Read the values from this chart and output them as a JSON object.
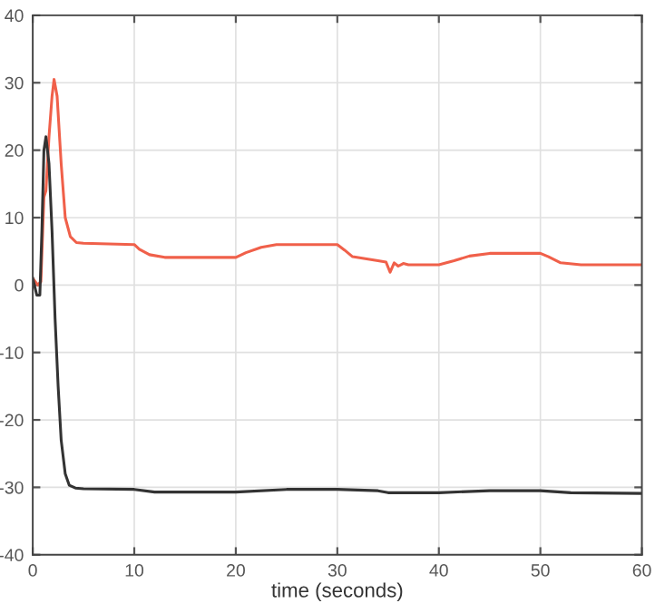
{
  "chart_data": {
    "type": "line",
    "xlabel": "time (seconds)",
    "xlim": [
      0,
      60
    ],
    "ylim": [
      -40,
      40
    ],
    "xticks": [
      0,
      10,
      20,
      30,
      40,
      50,
      60
    ],
    "yticks": [
      -40,
      -30,
      -20,
      -10,
      0,
      10,
      20,
      30,
      40
    ],
    "grid": true,
    "series": [
      {
        "color": "#f0604a",
        "x": [
          0,
          0.5,
          0.8,
          1.1,
          1.3,
          1.6,
          1.9,
          2.1,
          2.4,
          2.8,
          3.2,
          3.7,
          4.3,
          5,
          10,
          10.5,
          11.5,
          13,
          20,
          21,
          22.5,
          24,
          30,
          30.7,
          31.5,
          34,
          34.8,
          35.2,
          35.6,
          36,
          36.5,
          37,
          40,
          41.5,
          43,
          45,
          50,
          50.8,
          52,
          54,
          60
        ],
        "values": [
          1,
          0,
          0.5,
          13,
          14,
          22,
          28,
          30.5,
          28,
          18,
          10,
          7.2,
          6.3,
          6.2,
          6,
          5.3,
          4.5,
          4.1,
          4.1,
          4.8,
          5.6,
          6,
          6,
          5.2,
          4.2,
          3.6,
          3.4,
          1.9,
          3.3,
          2.8,
          3.2,
          3,
          3,
          3.6,
          4.3,
          4.7,
          4.7,
          4.2,
          3.3,
          3,
          3
        ]
      },
      {
        "color": "#333333",
        "x": [
          0,
          0.4,
          0.7,
          0.9,
          1.1,
          1.3,
          1.6,
          1.9,
          2.2,
          2.5,
          2.8,
          3.2,
          3.6,
          4.2,
          5,
          10,
          12,
          20,
          25,
          30,
          34,
          35,
          40,
          45,
          50,
          53,
          60
        ],
        "values": [
          1,
          -1.5,
          -1.5,
          8,
          20,
          22,
          18,
          8,
          -5,
          -15,
          -23,
          -28,
          -29.7,
          -30.1,
          -30.2,
          -30.3,
          -30.7,
          -30.7,
          -30.3,
          -30.3,
          -30.5,
          -30.8,
          -30.8,
          -30.5,
          -30.5,
          -30.8,
          -30.9
        ]
      }
    ]
  }
}
